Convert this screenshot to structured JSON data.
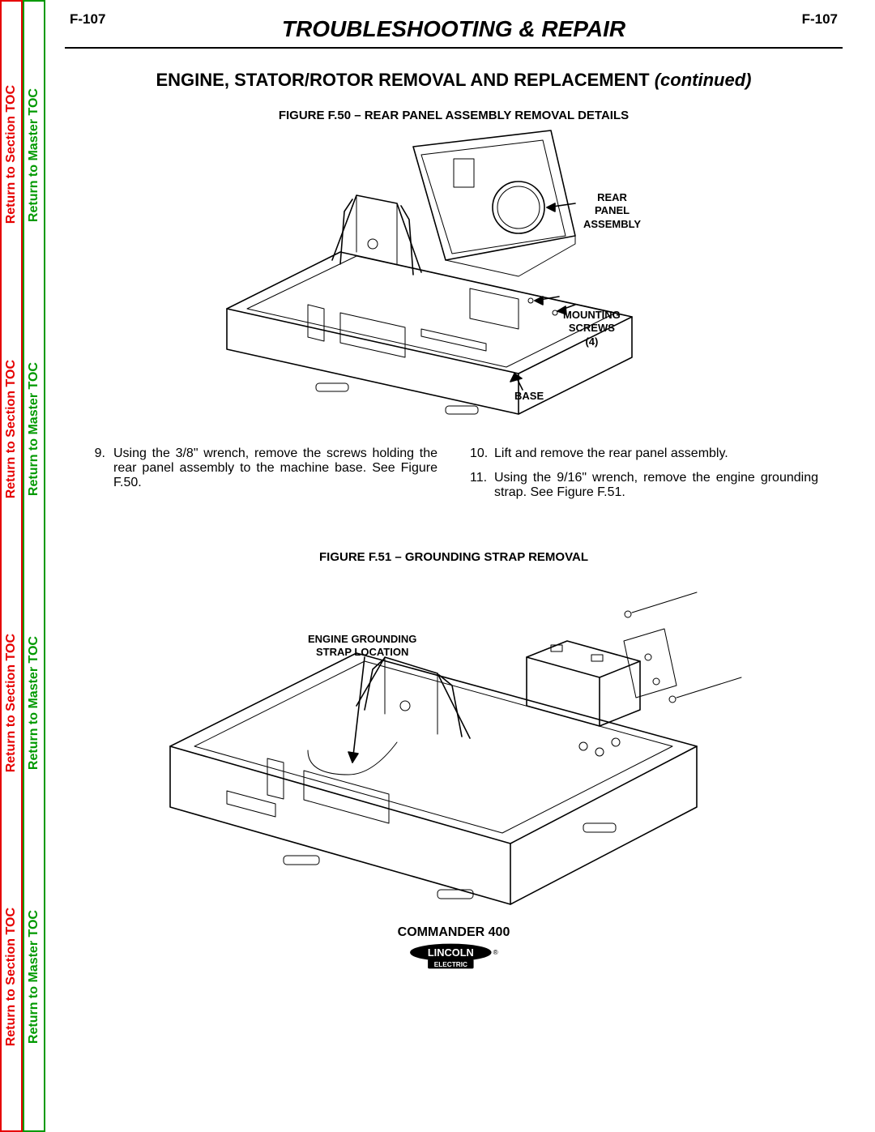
{
  "sidebar": {
    "section_toc": "Return to Section TOC",
    "master_toc": "Return to Master TOC"
  },
  "header": {
    "page_left": "F-107",
    "page_right": "F-107",
    "main_title": "TROUBLESHOOTING & REPAIR"
  },
  "sub_title": {
    "main": "ENGINE, STATOR/ROTOR REMOVAL AND REPLACEMENT",
    "cont": "(continued)"
  },
  "figure1": {
    "title": "FIGURE F.50 – REAR PANEL ASSEMBLY REMOVAL DETAILS",
    "callouts": {
      "rear_panel": "REAR\nPANEL\nASSEMBLY",
      "mounting": "MOUNTING\nSCREWS\n(4)",
      "base": "BASE"
    }
  },
  "instructions": {
    "left": [
      {
        "n": "9.",
        "t": "Using the 3/8\" wrench, remove the screws holding the rear panel assembly to the machine base.  See Figure F.50."
      }
    ],
    "right": [
      {
        "n": "10.",
        "t": "Lift and remove the rear panel assembly."
      },
      {
        "n": "11.",
        "t": "Using the 9/16\" wrench, remove the engine grounding strap.  See Figure F.51."
      }
    ]
  },
  "figure2": {
    "title": "FIGURE F.51 – GROUNDING STRAP REMOVAL",
    "callouts": {
      "strap": "ENGINE GROUNDING\nSTRAP LOCATION"
    }
  },
  "footer": {
    "product": "COMMANDER 400",
    "brand_top": "LINCOLN",
    "brand_bot": "ELECTRIC",
    "reg": "®"
  },
  "colors": {
    "red": "#e60000",
    "green": "#009900",
    "black": "#000000",
    "bg": "#ffffff"
  }
}
